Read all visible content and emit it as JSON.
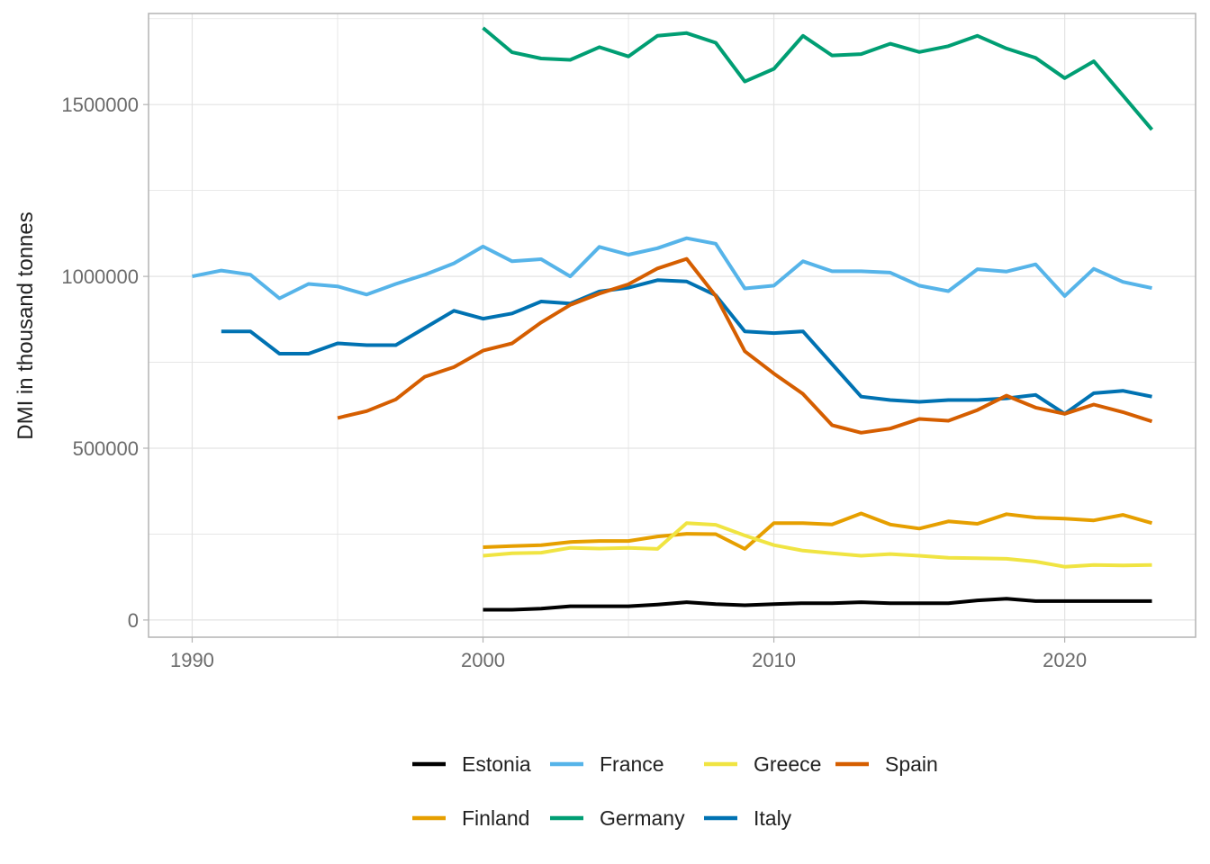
{
  "chart_data": {
    "type": "line",
    "title": "",
    "xlabel": "",
    "ylabel": "DMI in thousand tonnes",
    "xlim": [
      1988.5,
      2024.5
    ],
    "ylim": [
      -50000,
      1765000
    ],
    "x_ticks": [
      1990,
      2000,
      2010,
      2020
    ],
    "y_ticks": [
      0,
      500000,
      1000000,
      1500000
    ],
    "x_tick_labels": [
      "1990",
      "2000",
      "2010",
      "2020"
    ],
    "y_tick_labels": [
      "0",
      "500000",
      "1000000",
      "1500000"
    ],
    "grid": true,
    "legend_position": "bottom",
    "series": [
      {
        "name": "Estonia",
        "color": "#000000",
        "x": [
          2000,
          2001,
          2002,
          2003,
          2004,
          2005,
          2006,
          2007,
          2008,
          2009,
          2010,
          2011,
          2012,
          2013,
          2014,
          2015,
          2016,
          2017,
          2018,
          2019,
          2020,
          2021,
          2022,
          2023
        ],
        "values": [
          30000,
          30000,
          33000,
          40000,
          40000,
          40000,
          45000,
          52000,
          46000,
          43000,
          46000,
          49000,
          49000,
          52000,
          49000,
          49000,
          49000,
          57000,
          62000,
          55000,
          55000,
          55000,
          55000,
          55000
        ]
      },
      {
        "name": "Finland",
        "color": "#E69F00",
        "x": [
          2000,
          2001,
          2002,
          2003,
          2004,
          2005,
          2006,
          2007,
          2008,
          2009,
          2010,
          2011,
          2012,
          2013,
          2014,
          2015,
          2016,
          2017,
          2018,
          2019,
          2020,
          2021,
          2022,
          2023
        ],
        "values": [
          212000,
          215000,
          218000,
          227000,
          230000,
          230000,
          243000,
          251000,
          250000,
          207000,
          282000,
          282000,
          278000,
          310000,
          278000,
          266000,
          287000,
          280000,
          308000,
          298000,
          295000,
          290000,
          306000,
          282000
        ]
      },
      {
        "name": "France",
        "color": "#56B4E9",
        "x": [
          1990,
          1991,
          1992,
          1993,
          1994,
          1995,
          1996,
          1997,
          1998,
          1999,
          2000,
          2001,
          2002,
          2003,
          2004,
          2005,
          2006,
          2007,
          2008,
          2009,
          2010,
          2011,
          2012,
          2013,
          2014,
          2015,
          2016,
          2017,
          2018,
          2019,
          2020,
          2021,
          2022,
          2023
        ],
        "values": [
          1000000,
          1017000,
          1005000,
          936000,
          978000,
          971000,
          947000,
          978000,
          1005000,
          1038000,
          1087000,
          1044000,
          1050000,
          1000000,
          1086000,
          1063000,
          1082000,
          1111000,
          1095000,
          965000,
          973000,
          1044000,
          1015000,
          1015000,
          1011000,
          973000,
          957000,
          1021000,
          1014000,
          1035000,
          943000,
          1022000,
          984000,
          966000
        ]
      },
      {
        "name": "Germany",
        "color": "#009E73",
        "x": [
          2000,
          2001,
          2002,
          2003,
          2004,
          2005,
          2006,
          2007,
          2008,
          2009,
          2010,
          2011,
          2012,
          2013,
          2014,
          2015,
          2016,
          2017,
          2018,
          2019,
          2020,
          2021,
          2022,
          2023
        ],
        "values": [
          1723000,
          1652000,
          1634000,
          1630000,
          1667000,
          1640000,
          1700000,
          1708000,
          1680000,
          1567000,
          1604000,
          1700000,
          1643000,
          1647000,
          1677000,
          1653000,
          1670000,
          1700000,
          1663000,
          1636000,
          1577000,
          1626000,
          1527000,
          1427000
        ]
      },
      {
        "name": "Greece",
        "color": "#F0E442",
        "x": [
          2000,
          2001,
          2002,
          2003,
          2004,
          2005,
          2006,
          2007,
          2008,
          2009,
          2010,
          2011,
          2012,
          2013,
          2014,
          2015,
          2016,
          2017,
          2018,
          2019,
          2020,
          2021,
          2022,
          2023
        ],
        "values": [
          187000,
          194000,
          196000,
          210000,
          208000,
          210000,
          207000,
          282000,
          277000,
          246000,
          218000,
          202000,
          194000,
          187000,
          192000,
          187000,
          181000,
          180000,
          178000,
          170000,
          155000,
          160000,
          159000,
          160000
        ]
      },
      {
        "name": "Italy",
        "color": "#0072B2",
        "x": [
          1991,
          1992,
          1993,
          1994,
          1995,
          1996,
          1997,
          1998,
          1999,
          2000,
          2001,
          2002,
          2003,
          2004,
          2005,
          2006,
          2007,
          2008,
          2009,
          2010,
          2011,
          2012,
          2013,
          2014,
          2015,
          2016,
          2017,
          2018,
          2019,
          2020,
          2021,
          2022,
          2023
        ],
        "values": [
          840000,
          840000,
          775000,
          775000,
          805000,
          800000,
          800000,
          850000,
          900000,
          877000,
          892000,
          927000,
          921000,
          956000,
          967000,
          989000,
          985000,
          945000,
          840000,
          835000,
          840000,
          745000,
          650000,
          640000,
          635000,
          640000,
          640000,
          645000,
          655000,
          600000,
          660000,
          667000,
          650000
        ]
      },
      {
        "name": "Spain",
        "color": "#D55E00",
        "x": [
          1995,
          1996,
          1997,
          1998,
          1999,
          2000,
          2001,
          2002,
          2003,
          2004,
          2005,
          2006,
          2007,
          2008,
          2009,
          2010,
          2011,
          2012,
          2013,
          2014,
          2015,
          2016,
          2017,
          2018,
          2019,
          2020,
          2021,
          2022,
          2023
        ],
        "values": [
          588000,
          608000,
          642000,
          708000,
          736000,
          784000,
          805000,
          866000,
          917000,
          950000,
          977000,
          1023000,
          1051000,
          943000,
          782000,
          717000,
          658000,
          567000,
          545000,
          557000,
          585000,
          580000,
          611000,
          653000,
          618000,
          600000,
          627000,
          605000,
          578000
        ]
      }
    ],
    "legend_rows": [
      [
        "Estonia",
        "France",
        "Greece",
        "Spain"
      ],
      [
        "Finland",
        "Germany",
        "Italy"
      ]
    ]
  }
}
